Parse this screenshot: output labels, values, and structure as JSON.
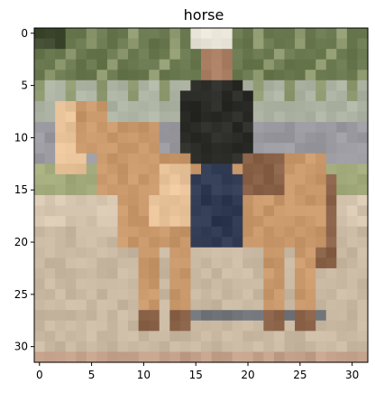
{
  "chart_data": {
    "type": "heatmap",
    "title": "horse",
    "xlabel": "",
    "ylabel": "",
    "grid": false,
    "image_shape": [
      32,
      32
    ],
    "xlim": [
      -0.5,
      31.5
    ],
    "ylim": [
      31.5,
      -0.5
    ],
    "x_ticks": [
      0,
      5,
      10,
      15,
      20,
      25,
      30
    ],
    "y_ticks": [
      0,
      5,
      10,
      15,
      20,
      25,
      30
    ],
    "x_tick_labels": [
      "0",
      "5",
      "10",
      "15",
      "20",
      "25",
      "30"
    ],
    "y_tick_labels": [
      "0",
      "5",
      "10",
      "15",
      "20",
      "25",
      "30"
    ],
    "region_colors": {
      "foliage_dark": "#3f4a30",
      "foliage": "#6a7850",
      "foliage_light": "#8f9a70",
      "wall": "#aeb4a4",
      "road_grey": "#9a9aa0",
      "grass": "#a3ab7c",
      "sand": "#c9b8a2",
      "sand_light": "#d6c6b0",
      "shadow": "#707478",
      "bottom_band": "#c2a08a",
      "horse": "#c8976a",
      "horse_light": "#e9c39a",
      "horse_dark": "#8a6248",
      "rider": "#2b2c28",
      "rider_jeans": "#2f3a52",
      "hat": "#e6e2d6",
      "face": "#a87c60"
    }
  }
}
